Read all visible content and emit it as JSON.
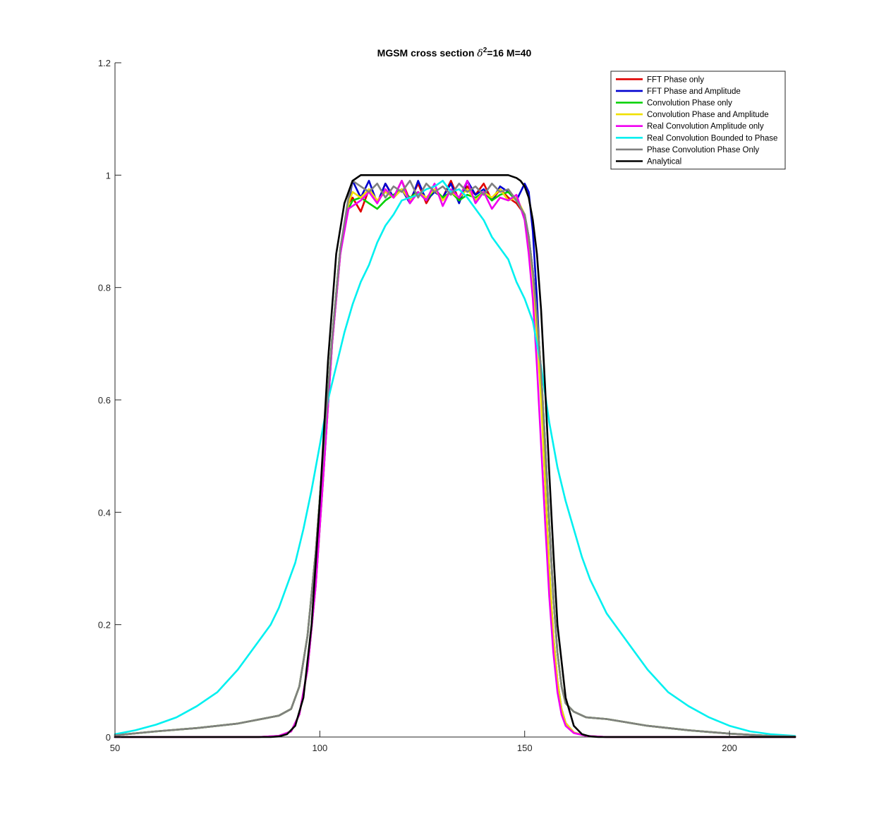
{
  "chart_data": {
    "type": "line",
    "title": {
      "prefix": "MGSM cross section ",
      "delta": "δ",
      "exponent": "2",
      "suffix": "=16 M=40"
    },
    "xlabel": "",
    "ylabel": "",
    "xlim": [
      50,
      216
    ],
    "ylim": [
      0,
      1.2
    ],
    "xticks": [
      50,
      100,
      150,
      200
    ],
    "yticks": [
      0,
      0.2,
      0.4,
      0.6,
      0.8,
      1,
      1.2
    ],
    "grid": false,
    "legend_position": "top-right",
    "series": [
      {
        "name": "FFT Phase only",
        "color": "#e00000",
        "x": [
          50,
          60,
          70,
          80,
          90,
          93,
          95,
          97,
          99,
          101,
          103,
          105,
          107,
          108,
          110,
          112,
          114,
          116,
          118,
          120,
          122,
          124,
          126,
          128,
          130,
          132,
          134,
          136,
          138,
          140,
          142,
          144,
          146,
          148,
          150,
          151,
          152,
          153,
          154,
          155,
          156,
          157,
          158,
          159,
          160,
          162,
          165,
          170,
          180,
          190,
          200,
          210,
          216
        ],
        "y": [
          0.003,
          0.01,
          0.016,
          0.024,
          0.038,
          0.05,
          0.09,
          0.18,
          0.33,
          0.52,
          0.71,
          0.87,
          0.95,
          0.96,
          0.935,
          0.975,
          0.95,
          0.985,
          0.96,
          0.99,
          0.955,
          0.985,
          0.95,
          0.975,
          0.96,
          0.99,
          0.955,
          0.98,
          0.965,
          0.985,
          0.955,
          0.975,
          0.96,
          0.95,
          0.93,
          0.89,
          0.83,
          0.75,
          0.65,
          0.52,
          0.38,
          0.25,
          0.15,
          0.09,
          0.06,
          0.045,
          0.035,
          0.032,
          0.02,
          0.012,
          0.006,
          0.002,
          0.001
        ]
      },
      {
        "name": "FFT Phase and Amplitude",
        "color": "#0000d0",
        "x": [
          50,
          85,
          90,
          93,
          95,
          97,
          99,
          101,
          103,
          105,
          107,
          108,
          110,
          112,
          114,
          116,
          118,
          120,
          122,
          124,
          126,
          128,
          130,
          132,
          134,
          136,
          138,
          140,
          142,
          144,
          146,
          148,
          150,
          151,
          152,
          153,
          154,
          155,
          156,
          157,
          158,
          159,
          160,
          162,
          165,
          170,
          175,
          216
        ],
        "y": [
          0,
          0,
          0.002,
          0.01,
          0.04,
          0.12,
          0.27,
          0.48,
          0.7,
          0.86,
          0.95,
          0.99,
          0.96,
          0.99,
          0.95,
          0.985,
          0.96,
          0.975,
          0.95,
          0.99,
          0.955,
          0.97,
          0.96,
          0.985,
          0.95,
          0.99,
          0.965,
          0.975,
          0.955,
          0.98,
          0.97,
          0.955,
          0.985,
          0.97,
          0.9,
          0.78,
          0.62,
          0.45,
          0.3,
          0.18,
          0.1,
          0.05,
          0.025,
          0.008,
          0.002,
          0,
          0,
          0
        ]
      },
      {
        "name": "Convolution Phase only",
        "color": "#00d000",
        "x": [
          50,
          60,
          70,
          80,
          90,
          93,
          95,
          97,
          99,
          101,
          103,
          105,
          107,
          108,
          110,
          112,
          114,
          116,
          118,
          120,
          122,
          124,
          126,
          128,
          130,
          132,
          134,
          136,
          138,
          140,
          142,
          144,
          146,
          148,
          150,
          151,
          152,
          153,
          154,
          155,
          156,
          157,
          158,
          159,
          160,
          162,
          165,
          170,
          180,
          190,
          200,
          210,
          216
        ],
        "y": [
          0.003,
          0.01,
          0.016,
          0.024,
          0.038,
          0.05,
          0.09,
          0.18,
          0.33,
          0.52,
          0.71,
          0.87,
          0.94,
          0.955,
          0.96,
          0.95,
          0.94,
          0.955,
          0.965,
          0.975,
          0.96,
          0.97,
          0.955,
          0.975,
          0.96,
          0.97,
          0.955,
          0.965,
          0.96,
          0.97,
          0.955,
          0.965,
          0.97,
          0.955,
          0.93,
          0.89,
          0.83,
          0.75,
          0.65,
          0.52,
          0.38,
          0.25,
          0.15,
          0.09,
          0.06,
          0.045,
          0.035,
          0.032,
          0.02,
          0.012,
          0.006,
          0.002,
          0.001
        ]
      },
      {
        "name": "Convolution Phase and Amplitude",
        "color": "#f0e000",
        "x": [
          50,
          85,
          90,
          93,
          95,
          97,
          99,
          101,
          103,
          105,
          107,
          108,
          110,
          112,
          114,
          116,
          118,
          120,
          122,
          124,
          126,
          128,
          130,
          132,
          134,
          136,
          138,
          140,
          142,
          144,
          146,
          148,
          150,
          151,
          152,
          153,
          154,
          155,
          156,
          157,
          158,
          159,
          160,
          162,
          165,
          170,
          175,
          216
        ],
        "y": [
          0,
          0,
          0.002,
          0.01,
          0.04,
          0.12,
          0.27,
          0.48,
          0.7,
          0.86,
          0.95,
          0.97,
          0.96,
          0.975,
          0.955,
          0.97,
          0.96,
          0.975,
          0.955,
          0.97,
          0.96,
          0.975,
          0.955,
          0.97,
          0.96,
          0.975,
          0.955,
          0.97,
          0.96,
          0.975,
          0.955,
          0.96,
          0.93,
          0.88,
          0.82,
          0.72,
          0.6,
          0.45,
          0.3,
          0.18,
          0.1,
          0.05,
          0.025,
          0.008,
          0.002,
          0,
          0,
          0
        ]
      },
      {
        "name": "Real Convolution Amplitude only",
        "color": "#f000f0",
        "x": [
          50,
          85,
          90,
          93,
          95,
          97,
          99,
          101,
          103,
          105,
          107,
          108,
          110,
          112,
          114,
          116,
          118,
          120,
          122,
          124,
          126,
          128,
          130,
          132,
          134,
          136,
          138,
          140,
          142,
          144,
          146,
          148,
          150,
          151,
          152,
          153,
          154,
          155,
          156,
          157,
          158,
          159,
          160,
          162,
          165,
          170,
          175,
          216
        ],
        "y": [
          0,
          0,
          0.002,
          0.01,
          0.04,
          0.12,
          0.27,
          0.48,
          0.7,
          0.86,
          0.94,
          0.945,
          0.955,
          0.97,
          0.95,
          0.975,
          0.96,
          0.99,
          0.95,
          0.97,
          0.955,
          0.985,
          0.945,
          0.975,
          0.96,
          0.99,
          0.95,
          0.97,
          0.94,
          0.96,
          0.955,
          0.965,
          0.92,
          0.86,
          0.78,
          0.66,
          0.52,
          0.38,
          0.25,
          0.15,
          0.08,
          0.04,
          0.02,
          0.007,
          0.002,
          0,
          0,
          0
        ]
      },
      {
        "name": "Real Convolution Bounded to Phase",
        "color": "#00f0f0",
        "x": [
          50,
          55,
          60,
          65,
          70,
          75,
          80,
          85,
          88,
          90,
          92,
          94,
          96,
          98,
          100,
          102,
          104,
          106,
          108,
          110,
          112,
          114,
          116,
          118,
          120,
          122,
          124,
          126,
          128,
          130,
          132,
          134,
          136,
          138,
          140,
          142,
          144,
          146,
          148,
          150,
          152,
          154,
          156,
          158,
          160,
          162,
          164,
          166,
          168,
          170,
          175,
          180,
          185,
          190,
          195,
          200,
          205,
          210,
          216
        ],
        "y": [
          0.005,
          0.012,
          0.022,
          0.035,
          0.055,
          0.08,
          0.12,
          0.17,
          0.2,
          0.23,
          0.27,
          0.31,
          0.37,
          0.44,
          0.52,
          0.6,
          0.66,
          0.72,
          0.77,
          0.81,
          0.84,
          0.88,
          0.91,
          0.93,
          0.955,
          0.96,
          0.965,
          0.975,
          0.98,
          0.99,
          0.97,
          0.975,
          0.96,
          0.94,
          0.92,
          0.89,
          0.87,
          0.85,
          0.81,
          0.78,
          0.74,
          0.66,
          0.56,
          0.48,
          0.42,
          0.37,
          0.32,
          0.28,
          0.25,
          0.22,
          0.17,
          0.12,
          0.08,
          0.055,
          0.035,
          0.02,
          0.01,
          0.005,
          0.002
        ]
      },
      {
        "name": "Phase Convolution Phase Only",
        "color": "#808080",
        "x": [
          50,
          60,
          70,
          80,
          90,
          93,
          95,
          97,
          99,
          101,
          103,
          105,
          107,
          108,
          110,
          112,
          114,
          116,
          118,
          120,
          122,
          124,
          126,
          128,
          130,
          132,
          134,
          136,
          138,
          140,
          142,
          144,
          146,
          148,
          150,
          151,
          152,
          153,
          154,
          155,
          156,
          157,
          158,
          159,
          160,
          162,
          165,
          170,
          180,
          190,
          200,
          210,
          216
        ],
        "y": [
          0.003,
          0.01,
          0.016,
          0.024,
          0.038,
          0.05,
          0.09,
          0.18,
          0.33,
          0.52,
          0.71,
          0.87,
          0.96,
          0.99,
          0.98,
          0.97,
          0.985,
          0.96,
          0.98,
          0.97,
          0.99,
          0.96,
          0.985,
          0.97,
          0.98,
          0.965,
          0.985,
          0.97,
          0.98,
          0.965,
          0.985,
          0.97,
          0.975,
          0.955,
          0.93,
          0.89,
          0.83,
          0.75,
          0.65,
          0.52,
          0.38,
          0.25,
          0.15,
          0.09,
          0.06,
          0.045,
          0.035,
          0.032,
          0.02,
          0.012,
          0.006,
          0.002,
          0.001
        ]
      },
      {
        "name": "Analytical",
        "color": "#000000",
        "x": [
          50,
          88,
          90,
          92,
          94,
          96,
          98,
          100,
          102,
          104,
          106,
          108,
          110,
          112,
          146,
          148,
          149,
          150,
          151,
          152,
          153,
          154,
          155,
          156,
          157,
          158,
          160,
          162,
          164,
          166,
          168,
          170,
          175,
          216
        ],
        "y": [
          0,
          0,
          0.001,
          0.005,
          0.02,
          0.07,
          0.2,
          0.42,
          0.67,
          0.86,
          0.95,
          0.99,
          1,
          1,
          1,
          0.995,
          0.99,
          0.98,
          0.96,
          0.92,
          0.86,
          0.76,
          0.62,
          0.47,
          0.33,
          0.2,
          0.07,
          0.02,
          0.005,
          0.001,
          0,
          0,
          0,
          0
        ]
      }
    ]
  }
}
